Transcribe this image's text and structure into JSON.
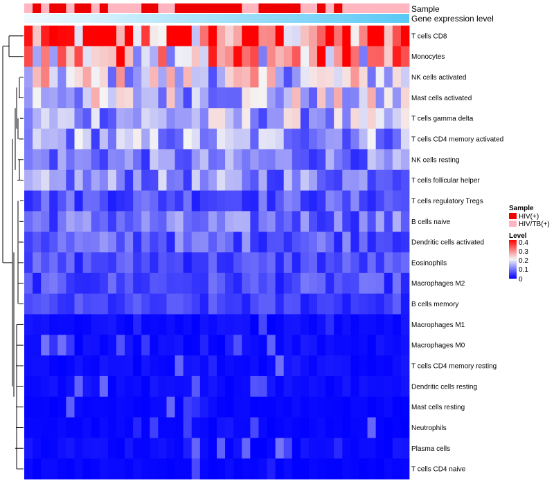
{
  "chart_data": {
    "type": "heatmap",
    "title": "",
    "annotations": {
      "sample_label": "Sample",
      "gene_expression_label": "Gene expression level"
    },
    "rows": [
      "T cells CD8",
      "Monocytes",
      "NK cells activated",
      "Mast cells activated",
      "T cells gamma delta",
      "T cells CD4 memory activated",
      "NK cells resting",
      "T cells follicular helper",
      "T cells regulatory  Tregs",
      "B cells naive",
      "Dendritic cells activated",
      "Eosinophils",
      "Macrophages M2",
      "B cells memory",
      "Macrophages M1",
      "Macrophages M0",
      "T cells CD4 memory resting",
      "Dendritic cells resting",
      "Mast cells resting",
      "Neutrophils",
      "Plasma cells",
      "T cells CD4 naive"
    ],
    "n_samples": 46,
    "sample_groups": [
      "HIV/TB(+)",
      "HIV(+)",
      "HIV/TB(+)",
      "HIV(+)",
      "HIV(+)",
      "HIV/TB(+)",
      "HIV(+)",
      "HIV(+)",
      "HIV/TB(+)",
      "HIV(+)",
      "HIV/TB(+)",
      "HIV/TB(+)",
      "HIV/TB(+)",
      "HIV/TB(+)",
      "HIV(+)",
      "HIV(+)",
      "HIV/TB(+)",
      "HIV/TB(+)",
      "HIV(+)",
      "HIV(+)",
      "HIV(+)",
      "HIV(+)",
      "HIV(+)",
      "HIV(+)",
      "HIV(+)",
      "HIV(+)",
      "HIV/TB(+)",
      "HIV/TB(+)",
      "HIV(+)",
      "HIV(+)",
      "HIV(+)",
      "HIV(+)",
      "HIV(+)",
      "HIV/TB(+)",
      "HIV/TB(+)",
      "HIV(+)",
      "HIV/TB(+)",
      "HIV(+)",
      "HIV/TB(+)",
      "HIV/TB(+)",
      "HIV/TB(+)",
      "HIV/TB(+)",
      "HIV/TB(+)",
      "HIV/TB(+)",
      "HIV/TB(+)",
      "HIV/TB(+)"
    ],
    "row_means": [
      0.32,
      0.27,
      0.18,
      0.16,
      0.14,
      0.13,
      0.1,
      0.11,
      0.07,
      0.09,
      0.08,
      0.06,
      0.06,
      0.05,
      0.02,
      0.02,
      0.02,
      0.02,
      0.01,
      0.01,
      0.02,
      0.01
    ],
    "colorbar": {
      "title": "Level",
      "ticks": [
        "0.4",
        "0.3",
        "0.2",
        "0.1",
        "0"
      ],
      "min": 0,
      "max": 0.4
    },
    "legend": {
      "title": "Sample",
      "entries": [
        {
          "label": "HIV(+)",
          "color": "#ee0000"
        },
        {
          "label": "HIV/TB(+)",
          "color": "#ffb6c1"
        }
      ]
    },
    "colors": {
      "low": "#0000ff",
      "mid": "#f5f5f5",
      "high": "#ff0000",
      "annotation_light": "#e8f6ff",
      "annotation_dark": "#5ac8f5"
    }
  }
}
